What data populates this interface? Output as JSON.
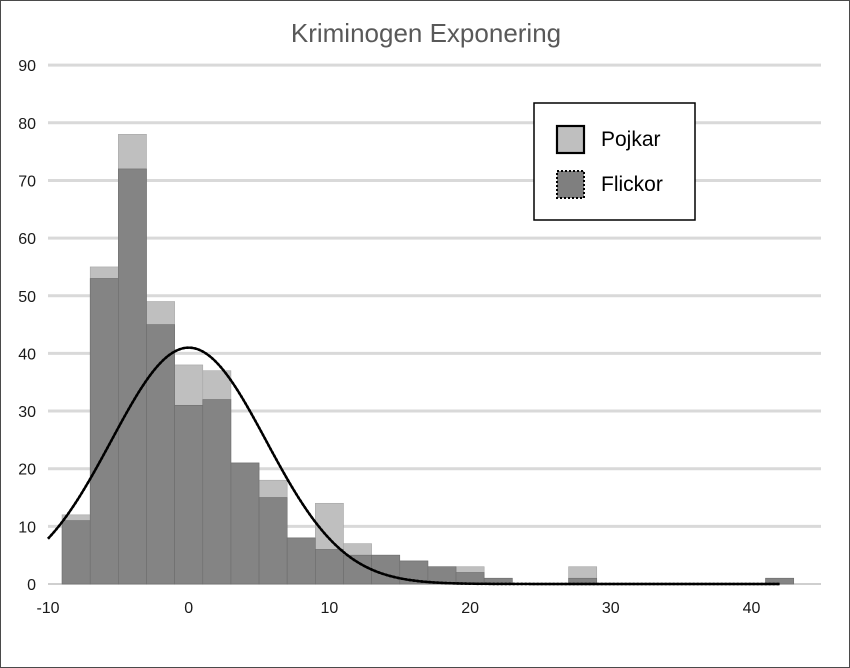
{
  "chart_data": {
    "type": "bar",
    "title": "Kriminogen Exponering",
    "xlabel": "",
    "ylabel": "",
    "xlim": [
      -10,
      43
    ],
    "ylim": [
      0,
      90
    ],
    "x_ticks": [
      -10,
      0,
      10,
      20,
      30,
      40
    ],
    "y_ticks": [
      0,
      10,
      20,
      30,
      40,
      50,
      60,
      70,
      80,
      90
    ],
    "grid": true,
    "legend_position": "top-right",
    "bin_width": 2,
    "bin_starts": [
      -9,
      -7,
      -5,
      -3,
      -1,
      1,
      3,
      5,
      7,
      9,
      11,
      13,
      15,
      17,
      19,
      21,
      23,
      25,
      27,
      29,
      31,
      33,
      35,
      37,
      39,
      41
    ],
    "series": [
      {
        "name": "Pojkar",
        "color": "#bfbfbf",
        "values": [
          12,
          55,
          78,
          49,
          38,
          37,
          21,
          18,
          8,
          14,
          7,
          5,
          4,
          3,
          3,
          1,
          0,
          0,
          3,
          0,
          0,
          0,
          0,
          0,
          0,
          1
        ]
      },
      {
        "name": "Flickor",
        "color": "#7f7f7f",
        "values": [
          11,
          53,
          72,
          45,
          31,
          32,
          21,
          15,
          8,
          6,
          5,
          5,
          4,
          3,
          2,
          1,
          0,
          0,
          1,
          0,
          0,
          0,
          0,
          0,
          0,
          1
        ]
      }
    ],
    "fitted_curves": [
      {
        "series": "Pojkar",
        "style": "solid",
        "color": "#000000",
        "peak_x": 0,
        "peak_y": 41,
        "sd": 5.5,
        "x_range": [
          -10,
          42
        ]
      },
      {
        "series": "Flickor",
        "style": "dotted",
        "color": "#000000",
        "peak_x": 0,
        "peak_y": 41,
        "sd": 5.5,
        "x_range": [
          -10,
          42
        ]
      }
    ]
  }
}
